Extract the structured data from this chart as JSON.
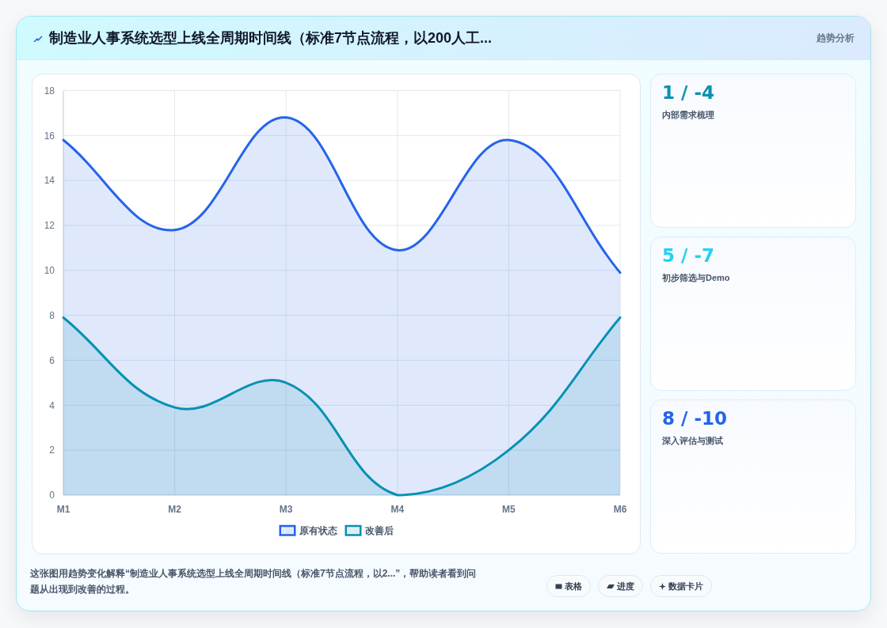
{
  "chart_data": [
    {
      "type": "area",
      "title": "制造业人事系统选型上线全周期时间线（标准7节点流程，以200人工...",
      "categories": [
        "M1",
        "M2",
        "M3",
        "M4",
        "M5",
        "M6"
      ],
      "series": [
        {
          "name": "原有状态",
          "color": "#2563eb",
          "values": [
            15.8,
            11.8,
            16.8,
            10.9,
            15.8,
            9.9
          ]
        },
        {
          "name": "改善后",
          "color": "#0891b2",
          "values": [
            7.9,
            3.9,
            5.0,
            0,
            2.0,
            7.9
          ]
        }
      ],
      "ylim": [
        0,
        18
      ],
      "yticks": [
        0,
        2,
        4,
        6,
        8,
        10,
        12,
        14,
        16,
        18
      ],
      "grid": true,
      "legend": "bottom",
      "annotations": [
        "趋势分析",
        "这张图用趋势变化解释“制造业人事系统选型上线全周期时间线（标准7节点流程，以2...”，帮助读者看到问题从出现到改善的过程。",
        "表格",
        "进度",
        "数据卡片"
      ]
    },
    {
      "type": "other",
      "title": "1 / -4",
      "subtitle": "内部需求梳理",
      "color": "#0891b2"
    },
    {
      "type": "other",
      "title": "5 / -7",
      "subtitle": "初步筛选与Demo",
      "color": "#22d3ee"
    },
    {
      "type": "other",
      "title": "8 / -10",
      "subtitle": "深入评估与测试",
      "color": "#2563eb"
    }
  ]
}
